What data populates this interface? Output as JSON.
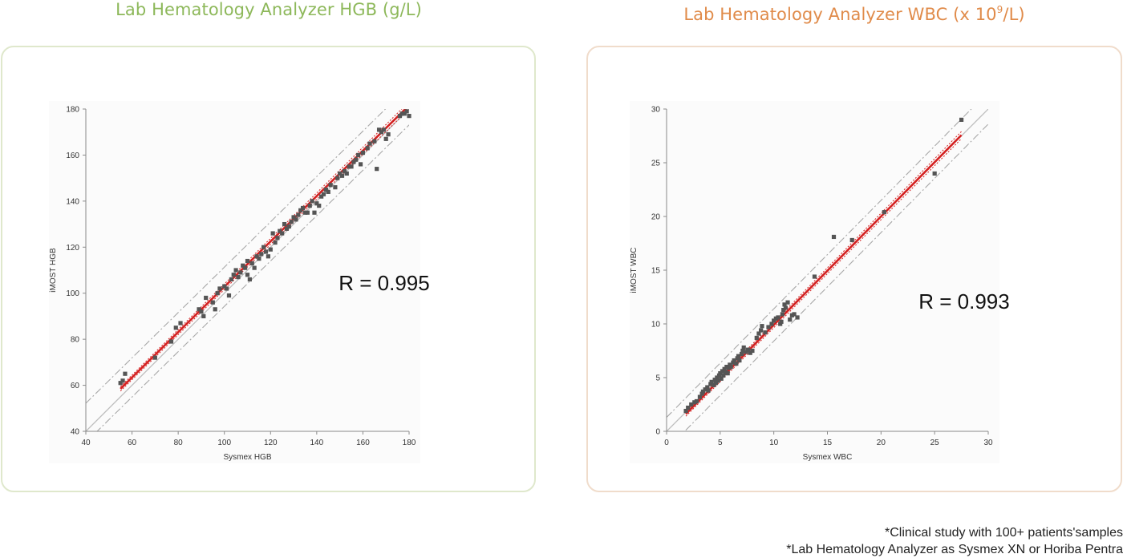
{
  "colors": {
    "hgb_title": "#8db85a",
    "wbc_title": "#e08b4a",
    "hgb_border": "#dfe8cc",
    "wbc_border": "#f0dccb",
    "points": "#555555",
    "fit_line": "#d42020",
    "identity_line": "#bdbdbd",
    "limit_line": "#a8a8a8"
  },
  "panels": [
    {
      "title": "Lab Hematology Analyzer HGB (g/L)"
    },
    {
      "title_main": "Lab Hematology Analyzer WBC (x 10",
      "title_sup": "9",
      "title_tail": "/L)"
    }
  ],
  "footnotes": [
    "*Clinical study with 100+ patients'samples",
    "*Lab Hematology Analyzer as Sysmex XN or Horiba Pentra"
  ],
  "chart_data": [
    {
      "type": "scatter",
      "title": "",
      "xlabel": "Sysmex HGB",
      "ylabel": "iMOST HGB",
      "xlim": [
        40,
        180
      ],
      "ylim": [
        40,
        180
      ],
      "xticks": [
        "40",
        "60",
        "80",
        "100",
        "120",
        "140",
        "160",
        "180"
      ],
      "yticks": [
        "40",
        "60",
        "80",
        "100",
        "120",
        "140",
        "160",
        "180"
      ],
      "annotation": "R = 0.995",
      "fit": {
        "slope": 0.985,
        "intercept": 4.3
      },
      "limits_offset": 8.5,
      "identity": true,
      "grid": false,
      "points": [
        [
          55,
          61
        ],
        [
          56,
          62
        ],
        [
          57,
          65
        ],
        [
          70,
          72
        ],
        [
          77,
          79
        ],
        [
          79,
          85
        ],
        [
          81,
          87
        ],
        [
          89,
          93
        ],
        [
          90,
          92
        ],
        [
          91,
          90
        ],
        [
          92,
          98
        ],
        [
          95,
          96
        ],
        [
          96,
          93
        ],
        [
          97,
          100
        ],
        [
          98,
          102
        ],
        [
          100,
          103
        ],
        [
          101,
          102
        ],
        [
          102,
          99
        ],
        [
          103,
          106
        ],
        [
          104,
          108
        ],
        [
          105,
          110
        ],
        [
          106,
          107
        ],
        [
          107,
          109
        ],
        [
          108,
          112
        ],
        [
          109,
          111
        ],
        [
          110,
          114
        ],
        [
          110,
          108
        ],
        [
          111,
          106
        ],
        [
          112,
          113
        ],
        [
          113,
          111
        ],
        [
          114,
          116
        ],
        [
          115,
          115
        ],
        [
          116,
          117
        ],
        [
          117,
          120
        ],
        [
          118,
          118
        ],
        [
          119,
          116
        ],
        [
          120,
          119
        ],
        [
          121,
          126
        ],
        [
          122,
          122
        ],
        [
          123,
          124
        ],
        [
          124,
          127
        ],
        [
          125,
          126
        ],
        [
          126,
          130
        ],
        [
          127,
          128
        ],
        [
          128,
          129
        ],
        [
          129,
          131
        ],
        [
          130,
          133
        ],
        [
          131,
          132
        ],
        [
          132,
          134
        ],
        [
          133,
          136
        ],
        [
          134,
          137
        ],
        [
          135,
          135
        ],
        [
          136,
          135
        ],
        [
          137,
          138
        ],
        [
          138,
          140
        ],
        [
          139,
          135
        ],
        [
          140,
          139
        ],
        [
          141,
          138
        ],
        [
          142,
          142
        ],
        [
          143,
          143
        ],
        [
          144,
          145
        ],
        [
          145,
          144
        ],
        [
          146,
          147
        ],
        [
          148,
          146
        ],
        [
          149,
          150
        ],
        [
          150,
          152
        ],
        [
          151,
          151
        ],
        [
          152,
          153
        ],
        [
          153,
          152
        ],
        [
          154,
          155
        ],
        [
          155,
          155
        ],
        [
          156,
          157
        ],
        [
          157,
          158
        ],
        [
          158,
          160
        ],
        [
          159,
          156
        ],
        [
          160,
          161
        ],
        [
          162,
          163
        ],
        [
          163,
          165
        ],
        [
          165,
          166
        ],
        [
          166,
          154
        ],
        [
          167,
          171
        ],
        [
          168,
          170
        ],
        [
          169,
          171
        ],
        [
          170,
          167
        ],
        [
          171,
          169
        ],
        [
          176,
          177
        ],
        [
          177,
          178
        ],
        [
          178,
          178
        ],
        [
          179,
          179
        ],
        [
          180,
          177
        ]
      ]
    },
    {
      "type": "scatter",
      "title": "",
      "xlabel": "Sysmex WBC",
      "ylabel": "iMOST WBC",
      "xlim": [
        0,
        30
      ],
      "ylim": [
        0,
        30
      ],
      "xticks": [
        "0",
        "5",
        "10",
        "15",
        "20",
        "25",
        "30"
      ],
      "yticks": [
        "0",
        "5",
        "10",
        "15",
        "20",
        "25",
        "30"
      ],
      "annotation": "R = 0.993",
      "fit": {
        "slope": 1.01,
        "intercept": -0.2
      },
      "limits_offset": 1.5,
      "identity": true,
      "grid": false,
      "points": [
        [
          1.8,
          1.9
        ],
        [
          2.0,
          2.2
        ],
        [
          2.3,
          2.5
        ],
        [
          2.6,
          2.7
        ],
        [
          2.8,
          2.8
        ],
        [
          3.1,
          3.2
        ],
        [
          3.3,
          3.5
        ],
        [
          3.4,
          3.7
        ],
        [
          3.6,
          3.9
        ],
        [
          3.8,
          4.1
        ],
        [
          3.9,
          3.8
        ],
        [
          4.1,
          4.4
        ],
        [
          4.2,
          4.6
        ],
        [
          4.4,
          4.3
        ],
        [
          4.5,
          4.8
        ],
        [
          4.6,
          4.5
        ],
        [
          4.7,
          5.0
        ],
        [
          4.8,
          4.7
        ],
        [
          4.9,
          5.2
        ],
        [
          5.0,
          5.4
        ],
        [
          5.1,
          4.9
        ],
        [
          5.2,
          5.6
        ],
        [
          5.3,
          5.2
        ],
        [
          5.4,
          5.8
        ],
        [
          5.5,
          5.5
        ],
        [
          5.6,
          6.0
        ],
        [
          5.7,
          5.4
        ],
        [
          5.8,
          5.9
        ],
        [
          5.9,
          6.2
        ],
        [
          6.0,
          6.0
        ],
        [
          6.2,
          6.4
        ],
        [
          6.3,
          6.6
        ],
        [
          6.5,
          6.3
        ],
        [
          6.6,
          6.8
        ],
        [
          6.7,
          7.0
        ],
        [
          6.8,
          6.6
        ],
        [
          7.0,
          7.2
        ],
        [
          7.1,
          7.5
        ],
        [
          7.2,
          7.8
        ],
        [
          7.4,
          7.4
        ],
        [
          7.6,
          7.6
        ],
        [
          7.8,
          7.3
        ],
        [
          8.0,
          7.5
        ],
        [
          8.4,
          8.7
        ],
        [
          8.6,
          9.1
        ],
        [
          8.8,
          9.4
        ],
        [
          8.9,
          9.8
        ],
        [
          9.2,
          9.2
        ],
        [
          9.5,
          9.7
        ],
        [
          9.8,
          10.0
        ],
        [
          10.0,
          10.3
        ],
        [
          10.2,
          10.5
        ],
        [
          10.4,
          10.6
        ],
        [
          10.6,
          10.0
        ],
        [
          10.7,
          10.2
        ],
        [
          10.8,
          10.9
        ],
        [
          10.9,
          11.3
        ],
        [
          11.0,
          11.8
        ],
        [
          11.1,
          11.5
        ],
        [
          11.3,
          12.0
        ],
        [
          11.5,
          10.4
        ],
        [
          11.7,
          10.8
        ],
        [
          11.9,
          10.9
        ],
        [
          12.2,
          10.6
        ],
        [
          13.8,
          14.4
        ],
        [
          15.6,
          18.1
        ],
        [
          17.3,
          17.8
        ],
        [
          20.3,
          20.4
        ],
        [
          25.0,
          24.0
        ],
        [
          27.5,
          29.0
        ]
      ]
    }
  ]
}
